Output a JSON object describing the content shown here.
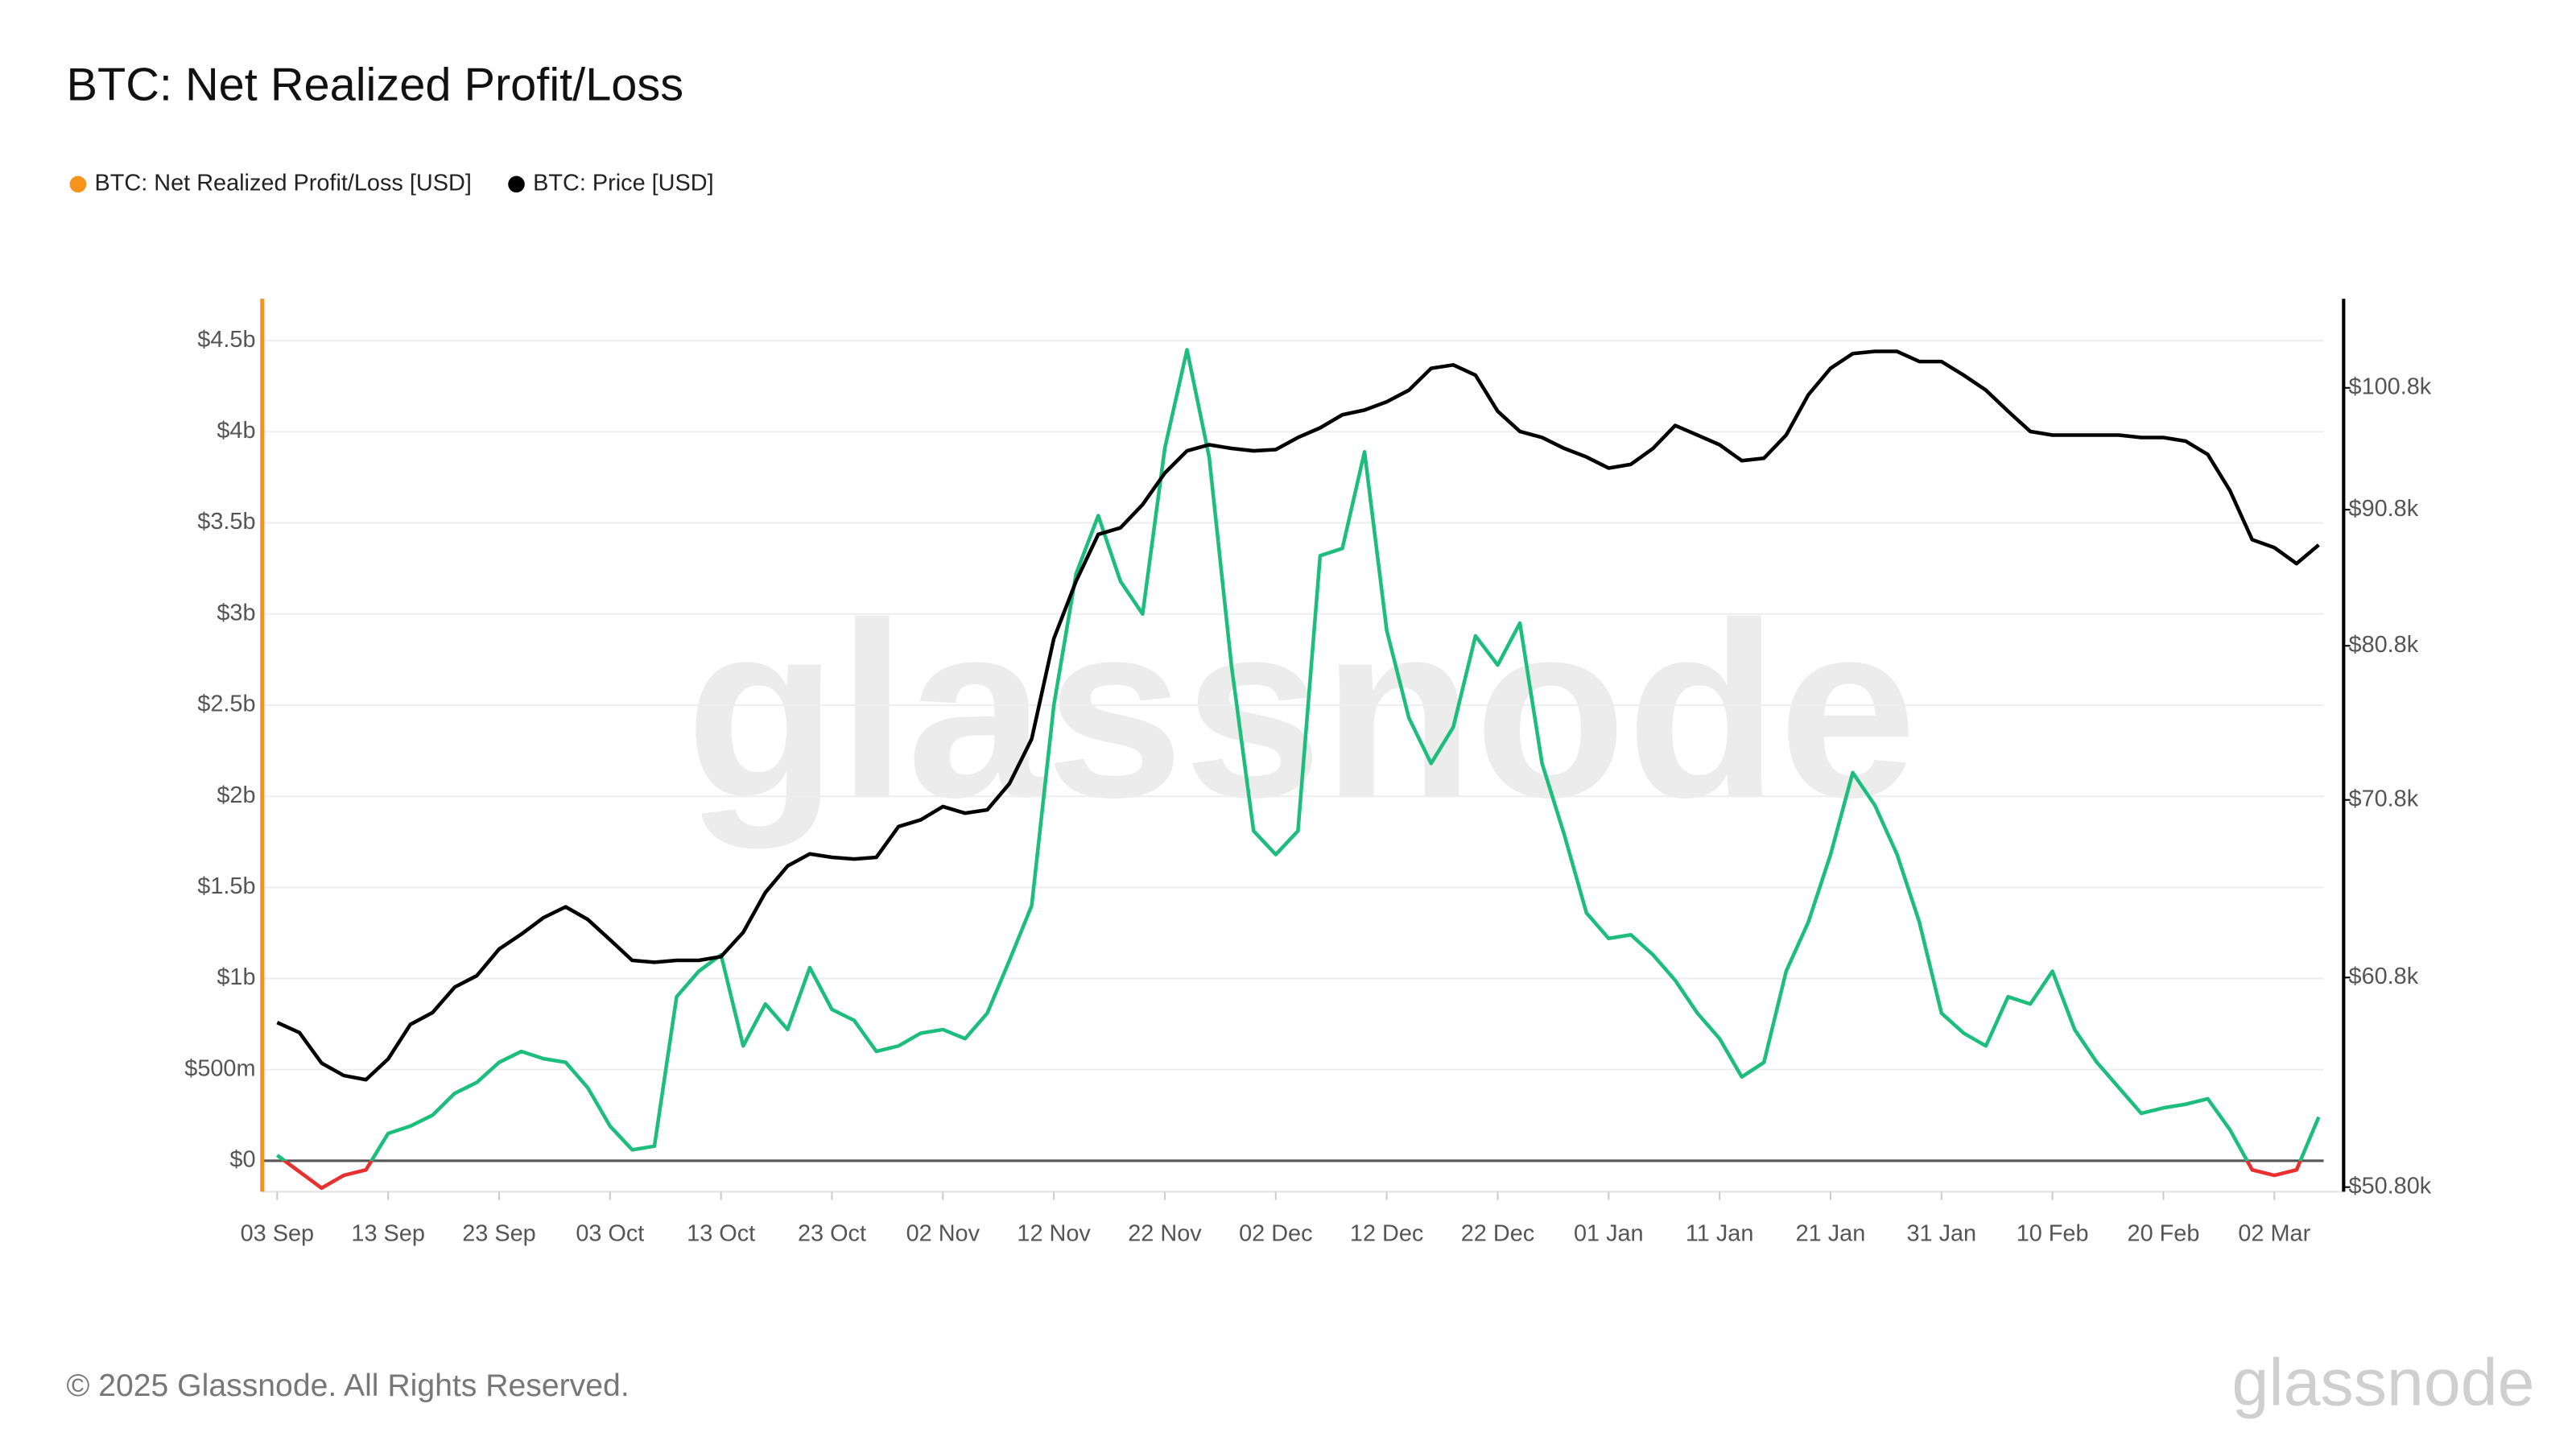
{
  "chart_data": {
    "type": "line",
    "title": "BTC: Net Realized Profit/Loss",
    "watermark": "glassnode",
    "footer": "© 2025 Glassnode. All Rights Reserved.",
    "logo": "glassnode",
    "x": [
      "03 Sep",
      "05 Sep",
      "07 Sep",
      "09 Sep",
      "11 Sep",
      "13 Sep",
      "15 Sep",
      "17 Sep",
      "19 Sep",
      "21 Sep",
      "23 Sep",
      "25 Sep",
      "27 Sep",
      "29 Sep",
      "01 Oct",
      "03 Oct",
      "05 Oct",
      "07 Oct",
      "09 Oct",
      "11 Oct",
      "13 Oct",
      "15 Oct",
      "17 Oct",
      "19 Oct",
      "21 Oct",
      "23 Oct",
      "25 Oct",
      "27 Oct",
      "29 Oct",
      "31 Oct",
      "02 Nov",
      "04 Nov",
      "06 Nov",
      "08 Nov",
      "10 Nov",
      "12 Nov",
      "14 Nov",
      "16 Nov",
      "18 Nov",
      "20 Nov",
      "22 Nov",
      "24 Nov",
      "26 Nov",
      "28 Nov",
      "30 Nov",
      "02 Dec",
      "04 Dec",
      "06 Dec",
      "08 Dec",
      "10 Dec",
      "12 Dec",
      "14 Dec",
      "16 Dec",
      "18 Dec",
      "20 Dec",
      "22 Dec",
      "24 Dec",
      "26 Dec",
      "28 Dec",
      "30 Dec",
      "01 Jan",
      "03 Jan",
      "05 Jan",
      "07 Jan",
      "09 Jan",
      "11 Jan",
      "13 Jan",
      "15 Jan",
      "17 Jan",
      "19 Jan",
      "21 Jan",
      "23 Jan",
      "25 Jan",
      "27 Jan",
      "29 Jan",
      "31 Jan",
      "02 Feb",
      "04 Feb",
      "06 Feb",
      "08 Feb",
      "10 Feb",
      "12 Feb",
      "14 Feb",
      "16 Feb",
      "18 Feb",
      "20 Feb",
      "22 Feb",
      "24 Feb",
      "26 Feb",
      "28 Feb",
      "02 Mar",
      "04 Mar",
      "06 Mar"
    ],
    "xticks": [
      "03 Sep",
      "13 Sep",
      "23 Sep",
      "03 Oct",
      "13 Oct",
      "23 Oct",
      "02 Nov",
      "12 Nov",
      "22 Nov",
      "02 Dec",
      "12 Dec",
      "22 Dec",
      "01 Jan",
      "11 Jan",
      "21 Jan",
      "31 Jan",
      "10 Feb",
      "20 Feb",
      "02 Mar"
    ],
    "ylim": [
      -0.17,
      4.73
    ],
    "yticks": [
      {
        "value": 0,
        "label": "$0"
      },
      {
        "value": 0.5,
        "label": "$500m"
      },
      {
        "value": 1,
        "label": "$1b"
      },
      {
        "value": 1.5,
        "label": "$1.5b"
      },
      {
        "value": 2,
        "label": "$2b"
      },
      {
        "value": 2.5,
        "label": "$2.5b"
      },
      {
        "value": 3,
        "label": "$3b"
      },
      {
        "value": 3.5,
        "label": "$3.5b"
      },
      {
        "value": 4,
        "label": "$4b"
      },
      {
        "value": 4.5,
        "label": "$4.5b"
      }
    ],
    "y2lim": [
      50.6,
      108.8
    ],
    "y2scale": "log",
    "y2ticks": [
      {
        "value": 50.8,
        "label": "$50.80k"
      },
      {
        "value": 60.8,
        "label": "$60.8k"
      },
      {
        "value": 70.8,
        "label": "$70.8k"
      },
      {
        "value": 80.8,
        "label": "$80.8k"
      },
      {
        "value": 90.8,
        "label": "$90.8k"
      },
      {
        "value": 100.8,
        "label": "$100.8k"
      }
    ],
    "grid": true,
    "legend": "top-left",
    "series": [
      {
        "name": "BTC: Net Realized Profit/Loss [USD]",
        "color": "#f7931a",
        "positive_color": "#1dbd7d",
        "negative_color": "#e8302f",
        "axis": "y",
        "values": [
          0.03,
          -0.06,
          -0.15,
          -0.08,
          -0.05,
          0.15,
          0.19,
          0.25,
          0.37,
          0.43,
          0.54,
          0.6,
          0.56,
          0.54,
          0.4,
          0.19,
          0.06,
          0.08,
          0.9,
          1.04,
          1.13,
          0.63,
          0.86,
          0.72,
          1.06,
          0.83,
          0.77,
          0.6,
          0.63,
          0.7,
          0.72,
          0.67,
          0.81,
          1.1,
          1.4,
          2.5,
          3.22,
          3.54,
          3.18,
          3.0,
          3.91,
          4.45,
          3.86,
          2.72,
          1.81,
          1.68,
          1.81,
          3.32,
          3.36,
          3.89,
          2.91,
          2.43,
          2.18,
          2.38,
          2.88,
          2.72,
          2.95,
          2.18,
          1.79,
          1.36,
          1.22,
          1.24,
          1.13,
          0.99,
          0.81,
          0.67,
          0.46,
          0.54,
          1.04,
          1.31,
          1.68,
          2.13,
          1.95,
          1.68,
          1.31,
          0.81,
          0.7,
          0.63,
          0.9,
          0.86,
          1.04,
          0.72,
          0.54,
          0.4,
          0.26,
          0.29,
          0.31,
          0.34,
          0.17,
          -0.05,
          -0.08,
          -0.05,
          0.24
        ]
      },
      {
        "name": "BTC: Price [USD]",
        "color": "#000000",
        "axis": "y2",
        "values": [
          58.5,
          58.0,
          56.5,
          55.9,
          55.7,
          56.7,
          58.4,
          59.0,
          60.3,
          60.9,
          62.3,
          63.1,
          64.0,
          64.6,
          63.9,
          62.8,
          61.7,
          61.6,
          61.7,
          61.7,
          61.9,
          63.2,
          65.4,
          66.9,
          67.6,
          67.4,
          67.3,
          67.4,
          69.2,
          69.6,
          70.4,
          70.0,
          70.2,
          71.8,
          74.6,
          81.3,
          85.4,
          88.9,
          89.4,
          91.2,
          93.7,
          95.5,
          96.0,
          95.7,
          95.5,
          95.6,
          96.6,
          97.4,
          98.5,
          98.9,
          99.6,
          100.6,
          102.5,
          102.8,
          101.9,
          98.8,
          97.1,
          96.6,
          95.7,
          95.0,
          94.1,
          94.4,
          95.7,
          97.6,
          96.8,
          96.0,
          94.7,
          94.9,
          96.8,
          100.2,
          102.5,
          103.8,
          104.0,
          104.0,
          103.1,
          103.1,
          101.9,
          100.6,
          98.8,
          97.1,
          96.8,
          96.8,
          96.8,
          96.8,
          96.6,
          96.6,
          96.3,
          95.2,
          92.3,
          88.5,
          87.9,
          86.7,
          88.1
        ]
      }
    ]
  }
}
